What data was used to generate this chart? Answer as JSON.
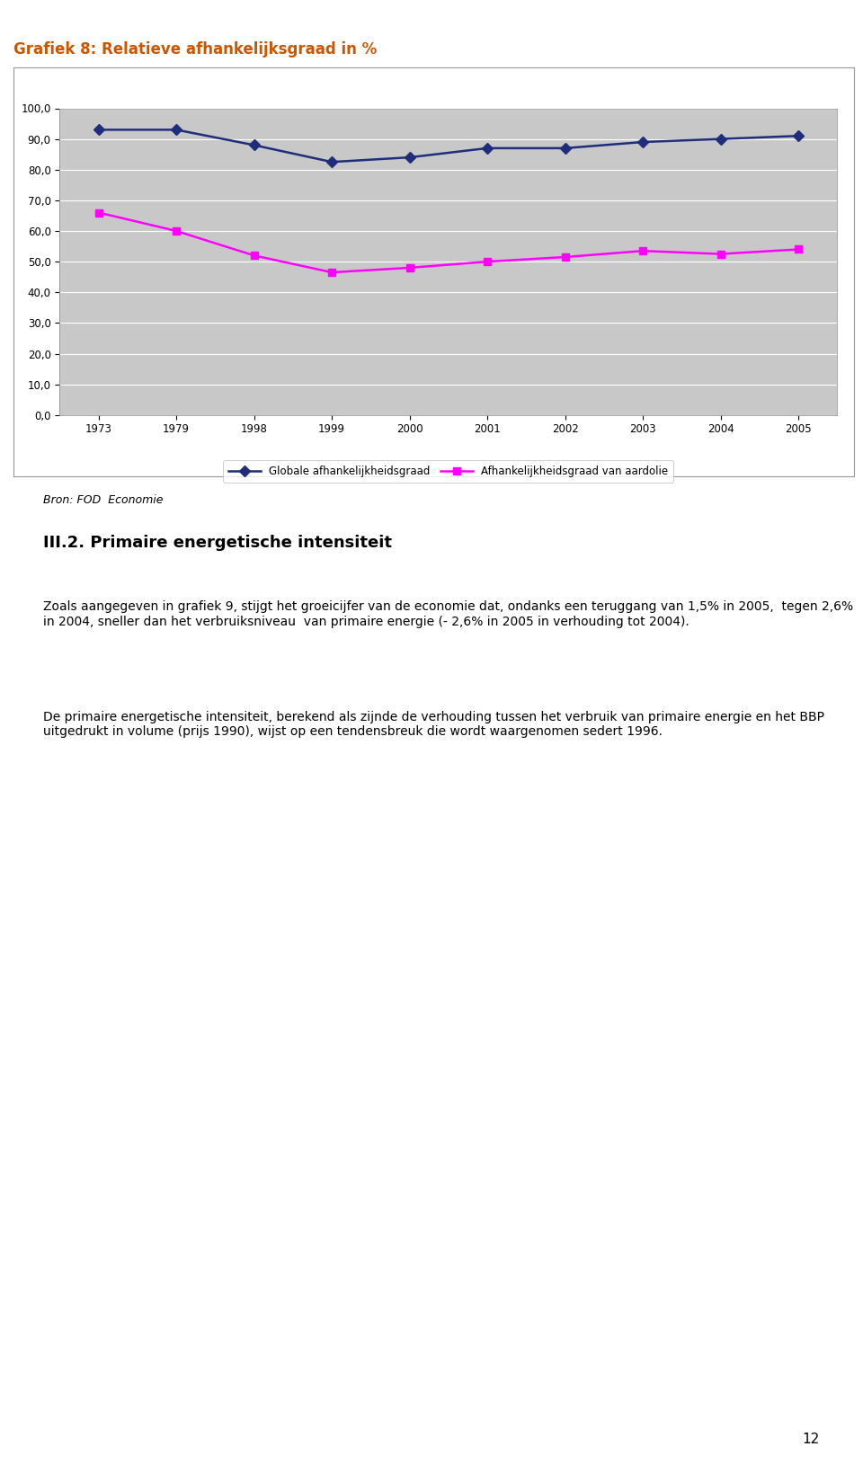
{
  "title": "Grafiek 8: Relatieve afhankelijksgraad in %",
  "title_color": "#CC5500",
  "x_labels": [
    "1973",
    "1979",
    "1998",
    "1999",
    "2000",
    "2001",
    "2002",
    "2003",
    "2004",
    "2005"
  ],
  "series1_label": "Globale afhankelijkheidsgraad",
  "series1_color": "#1F2D7B",
  "series1_values": [
    93.0,
    93.0,
    88.0,
    82.5,
    84.0,
    87.0,
    87.0,
    89.0,
    90.0,
    91.0
  ],
  "series2_label": "Afhankelijkheidsgraad van aardolie",
  "series2_color": "#FF00FF",
  "series2_values": [
    66.0,
    60.0,
    52.0,
    46.5,
    48.0,
    50.0,
    51.5,
    53.5,
    52.5,
    54.0
  ],
  "ylim": [
    0,
    100
  ],
  "yticks": [
    0.0,
    10.0,
    20.0,
    30.0,
    40.0,
    50.0,
    60.0,
    70.0,
    80.0,
    90.0,
    100.0
  ],
  "plot_bg_color": "#C8C8C8",
  "bron_text": "Bron: FOD  Economie",
  "section_title": "III.2. Primaire energetische intensiteit",
  "body_para1": "Zoals aangegeven in grafiek 9, stijgt het groeicijfer van de economie dat, ondanks een teruggang van 1,5% in 2005,  tegen 2,6% in 2004, sneller dan het verbruiksniveau  van primaire energie (- 2,6% in 2005 in verhouding tot 2004).",
  "body_para2": "De primaire energetische intensiteit, berekend als zijnde de verhouding tussen het verbruik van primaire energie en het BBP uitgedrukt in volume (prijs 1990), wijst op een tendensbreuk die wordt waargenomen sedert 1996.",
  "page_number": "12"
}
